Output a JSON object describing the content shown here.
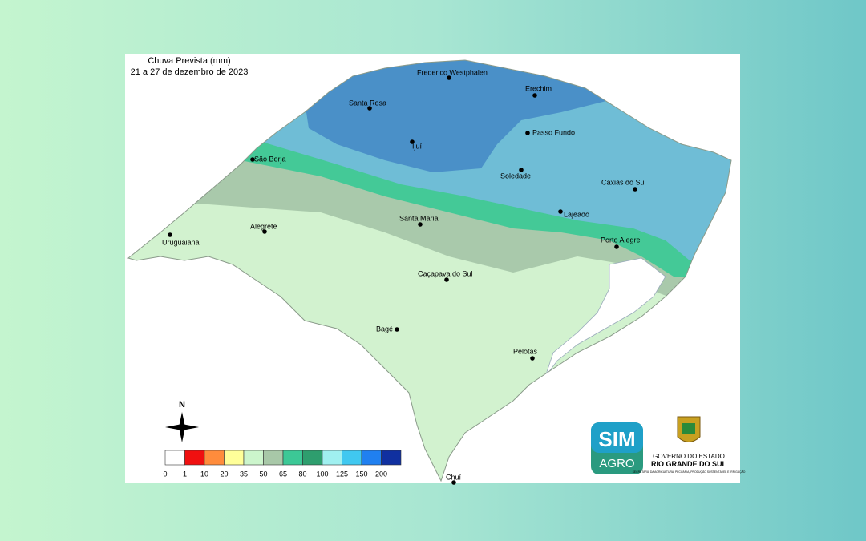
{
  "map": {
    "title": "Chuva Prevista (mm)",
    "subtitle": "21 a 27 de dezembro de 2023",
    "cities": [
      "Frederico Westphalen",
      "Erechim",
      "Santa Rosa",
      "Passo Fundo",
      "Ijuí",
      "São Borja",
      "Soledade",
      "Caxias do Sul",
      "Lajeado",
      "Santa Maria",
      "Uruguaiana",
      "Alegrete",
      "Porto Alegre",
      "Caçapava do Sul",
      "Bagé",
      "Pelotas",
      "Chuí"
    ],
    "compass": "N",
    "legend": [
      {
        "value": 0,
        "color": "#ffffff"
      },
      {
        "value": 1,
        "color": "#f01010"
      },
      {
        "value": 10,
        "color": "#ff8c3c"
      },
      {
        "value": 20,
        "color": "#ffff99"
      },
      {
        "value": 35,
        "color": "#ccf5cc"
      },
      {
        "value": 50,
        "color": "#a8c8a8"
      },
      {
        "value": 65,
        "color": "#3cc896"
      },
      {
        "value": 80,
        "color": "#2e9e6e"
      },
      {
        "value": 100,
        "color": "#a0f0f0"
      },
      {
        "value": 125,
        "color": "#40c8f0"
      },
      {
        "value": 150,
        "color": "#2080f0"
      },
      {
        "value": 200,
        "color": "#1030a0"
      }
    ],
    "logo": {
      "line1": "SIM",
      "line2": "AGRO"
    },
    "government": {
      "line1": "GOVERNO DO ESTADO",
      "line2": "RIO GRANDE DO SUL",
      "line3": "SECRETARIA DA AGRICULTURA, PECUÁRIA, PRODUÇÃO SUSTENTÁVEL E IRRIGAÇÃO"
    }
  }
}
